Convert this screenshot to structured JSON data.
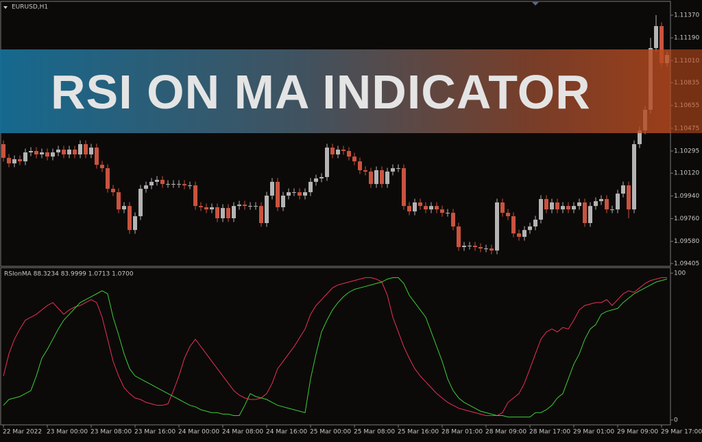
{
  "banner": {
    "title": "RSI ON MA INDICATOR"
  },
  "chart_data": [
    {
      "type": "candlestick",
      "title": "EURUSD,H1",
      "up_color": "#b4b4b4",
      "down_color": "#c9533f",
      "open": [
        1.10349,
        1.10241,
        1.10197,
        1.1023,
        1.10213,
        1.10284,
        1.10295,
        1.10268,
        1.10284,
        1.10251,
        1.10284,
        1.10306,
        1.10268,
        1.10306,
        1.10268,
        1.10349,
        1.10268,
        1.10322,
        1.10186,
        1.10159,
        1.09996,
        1.09969,
        1.09833,
        1.0986,
        1.0967,
        1.09779,
        1.09996,
        1.10023,
        1.10051,
        1.10067,
        1.10034,
        1.10034,
        1.10034,
        1.10034,
        1.10023,
        1.10023,
        1.0986,
        1.0985,
        1.09833,
        1.0985,
        1.09763,
        1.09844,
        1.09763,
        1.0986,
        1.09871,
        1.0986,
        1.0986,
        1.0986,
        1.09725,
        1.09942,
        1.10051,
        1.0985,
        1.09942,
        1.09969,
        1.09969,
        1.09942,
        1.09969,
        1.10051,
        1.10078,
        1.10089,
        1.10322,
        1.10268,
        1.10306,
        1.10295,
        1.10251,
        1.10213,
        1.10143,
        1.10132,
        1.10034,
        1.10143,
        1.10034,
        1.10132,
        1.10159,
        1.10159,
        1.0986,
        1.09817,
        1.09888,
        1.0986,
        1.09833,
        1.0986,
        1.09833,
        1.09806,
        1.09806,
        1.09698,
        1.09535,
        1.09546,
        1.09546,
        1.09535,
        1.09524,
        1.09524,
        1.09508,
        1.09888,
        1.09806,
        1.09779,
        1.09643,
        1.09616,
        1.0967,
        1.09698,
        1.09752,
        1.09915,
        1.09833,
        1.09888,
        1.09833,
        1.0986,
        1.09833,
        1.0986,
        1.09888,
        1.09725,
        1.0986,
        1.09898,
        1.09915,
        1.09833,
        1.09833,
        1.09958,
        1.10023,
        1.09833,
        1.10349,
        1.10458,
        1.10621,
        1.11109,
        1.11283,
        1.1099
      ],
      "high": [
        1.10379,
        1.10271,
        1.1026,
        1.1026,
        1.10314,
        1.10325,
        1.10325,
        1.10314,
        1.10314,
        1.10314,
        1.10336,
        1.10336,
        1.10336,
        1.10336,
        1.10379,
        1.10379,
        1.10352,
        1.10352,
        1.10216,
        1.10189,
        1.10026,
        1.09999,
        1.0989,
        1.0989,
        1.09809,
        1.10026,
        1.10053,
        1.10081,
        1.10097,
        1.10097,
        1.10064,
        1.10064,
        1.10064,
        1.10064,
        1.10053,
        1.10053,
        1.0989,
        1.0988,
        1.0988,
        1.0988,
        1.09874,
        1.09874,
        1.0989,
        1.09901,
        1.09901,
        1.0989,
        1.0989,
        1.0989,
        1.09972,
        1.10081,
        1.10081,
        1.09972,
        1.09999,
        1.09999,
        1.09999,
        1.09999,
        1.10081,
        1.10108,
        1.10119,
        1.10352,
        1.10352,
        1.10336,
        1.10336,
        1.10325,
        1.10281,
        1.10243,
        1.10173,
        1.10162,
        1.10173,
        1.10173,
        1.10162,
        1.10189,
        1.10189,
        1.10189,
        1.0989,
        1.09918,
        1.09918,
        1.0989,
        1.0989,
        1.0989,
        1.09863,
        1.09836,
        1.09836,
        1.09728,
        1.09576,
        1.09576,
        1.09576,
        1.09565,
        1.09554,
        1.09554,
        1.09918,
        1.09918,
        1.09836,
        1.09809,
        1.09673,
        1.097,
        1.09728,
        1.09782,
        1.09945,
        1.09945,
        1.09918,
        1.09918,
        1.0989,
        1.0989,
        1.0989,
        1.09918,
        1.09918,
        1.0989,
        1.09928,
        1.09945,
        1.09945,
        1.09863,
        1.09988,
        1.10053,
        1.10053,
        1.10379,
        1.10488,
        1.10651,
        1.1119,
        1.1137,
        1.11313,
        1.11085
      ],
      "low": [
        1.10211,
        1.10167,
        1.10167,
        1.10183,
        1.10183,
        1.10254,
        1.10238,
        1.10238,
        1.10221,
        1.10221,
        1.10254,
        1.10238,
        1.10238,
        1.10238,
        1.10238,
        1.10238,
        1.10238,
        1.10156,
        1.10129,
        1.09966,
        1.09939,
        1.09803,
        1.09803,
        1.0964,
        1.0964,
        1.09749,
        1.09966,
        1.09993,
        1.10021,
        1.10004,
        1.10004,
        1.10004,
        1.10004,
        1.09993,
        1.09993,
        1.0983,
        1.0982,
        1.09803,
        1.09803,
        1.09733,
        1.09733,
        1.09733,
        1.09733,
        1.0983,
        1.0983,
        1.0983,
        1.0983,
        1.09695,
        1.09695,
        1.09912,
        1.0982,
        1.0982,
        1.09912,
        1.09939,
        1.09912,
        1.09912,
        1.09939,
        1.10021,
        1.10048,
        1.10059,
        1.10238,
        1.10238,
        1.10265,
        1.10221,
        1.10183,
        1.10113,
        1.10102,
        1.10004,
        1.10004,
        1.10004,
        1.10004,
        1.10102,
        1.10129,
        1.0983,
        1.09787,
        1.09787,
        1.0983,
        1.09803,
        1.09803,
        1.09803,
        1.09776,
        1.09776,
        1.09668,
        1.09505,
        1.09505,
        1.09516,
        1.09505,
        1.09494,
        1.09494,
        1.09478,
        1.09478,
        1.09776,
        1.09749,
        1.09613,
        1.09586,
        1.09586,
        1.0964,
        1.09668,
        1.09722,
        1.09803,
        1.09803,
        1.09803,
        1.09803,
        1.09803,
        1.09803,
        1.0983,
        1.09695,
        1.09695,
        1.0983,
        1.09868,
        1.09803,
        1.09803,
        1.09803,
        1.09928,
        1.09763,
        1.09803,
        1.10319,
        1.10428,
        1.10591,
        1.11079,
        1.1096,
        1.1096
      ],
      "close": [
        1.10241,
        1.10197,
        1.1023,
        1.10213,
        1.10284,
        1.10295,
        1.10268,
        1.10284,
        1.10251,
        1.10284,
        1.10306,
        1.10268,
        1.10306,
        1.10268,
        1.10349,
        1.10268,
        1.10322,
        1.10186,
        1.10159,
        1.09996,
        1.09969,
        1.09833,
        1.0986,
        1.0967,
        1.09779,
        1.09996,
        1.10023,
        1.10051,
        1.10067,
        1.10034,
        1.10034,
        1.10034,
        1.10034,
        1.10023,
        1.10023,
        1.0986,
        1.0985,
        1.09833,
        1.0985,
        1.09763,
        1.09844,
        1.09763,
        1.0986,
        1.09871,
        1.0986,
        1.0986,
        1.0986,
        1.09725,
        1.09942,
        1.10051,
        1.0985,
        1.09942,
        1.09969,
        1.09969,
        1.09942,
        1.09969,
        1.10051,
        1.10078,
        1.10089,
        1.10322,
        1.10268,
        1.10306,
        1.10295,
        1.10251,
        1.10213,
        1.10143,
        1.10132,
        1.10034,
        1.10143,
        1.10034,
        1.10132,
        1.10159,
        1.10159,
        1.0986,
        1.09817,
        1.09888,
        1.0986,
        1.09833,
        1.0986,
        1.09833,
        1.09806,
        1.09806,
        1.09698,
        1.09535,
        1.09546,
        1.09546,
        1.09535,
        1.09524,
        1.09524,
        1.09508,
        1.09888,
        1.09806,
        1.09779,
        1.09643,
        1.09616,
        1.0967,
        1.09698,
        1.09752,
        1.09915,
        1.09833,
        1.09888,
        1.09833,
        1.0986,
        1.09833,
        1.0986,
        1.09888,
        1.09725,
        1.0986,
        1.09898,
        1.09915,
        1.09833,
        1.09833,
        1.09958,
        1.10023,
        1.09833,
        1.10349,
        1.10458,
        1.10621,
        1.11109,
        1.11283,
        1.1099,
        1.11055
      ],
      "ylim": [
        1.09383,
        1.11473
      ],
      "yticks": [
        {
          "value": 1.1137,
          "label": "1.11370"
        },
        {
          "value": 1.1119,
          "label": "1.11190"
        },
        {
          "value": 1.1101,
          "label": "1.11010"
        },
        {
          "value": 1.10835,
          "label": "1.10835"
        },
        {
          "value": 1.10655,
          "label": "1.10655"
        },
        {
          "value": 1.10475,
          "label": "1.10475"
        },
        {
          "value": 1.10295,
          "label": "1.10295"
        },
        {
          "value": 1.1012,
          "label": "1.10120"
        },
        {
          "value": 1.0994,
          "label": "1.09940"
        },
        {
          "value": 1.0976,
          "label": "1.09760"
        },
        {
          "value": 1.0958,
          "label": "1.09580"
        },
        {
          "value": 1.09405,
          "label": "1.09405"
        }
      ]
    },
    {
      "type": "line",
      "title": "RSIonMA 88.3234 83.9999 1.0713 1.0700",
      "categories": [
        "22 Mar 2022",
        null,
        null,
        null,
        null,
        null,
        null,
        null,
        "23 Mar 00:00",
        null,
        null,
        null,
        null,
        null,
        null,
        null,
        "23 Mar 08:00",
        null,
        null,
        null,
        null,
        null,
        null,
        null,
        "23 Mar 16:00",
        null,
        null,
        null,
        null,
        null,
        null,
        null,
        "24 Mar 00:00",
        null,
        null,
        null,
        null,
        null,
        null,
        null,
        "24 Mar 08:00",
        null,
        null,
        null,
        null,
        null,
        null,
        null,
        "24 Mar 16:00",
        null,
        null,
        null,
        null,
        null,
        null,
        null,
        "25 Mar 00:00",
        null,
        null,
        null,
        null,
        null,
        null,
        null,
        "25 Mar 08:00",
        null,
        null,
        null,
        null,
        null,
        null,
        null,
        "25 Mar 16:00",
        null,
        null,
        null,
        null,
        null,
        null,
        null,
        "28 Mar 01:00",
        null,
        null,
        null,
        null,
        null,
        null,
        null,
        "28 Mar 09:00",
        null,
        null,
        null,
        null,
        null,
        null,
        null,
        "28 Mar 17:00",
        null,
        null,
        null,
        null,
        null,
        null,
        null,
        "29 Mar 01:00",
        null,
        null,
        null,
        null,
        null,
        null,
        null,
        "29 Mar 09:00",
        null,
        null,
        null,
        null,
        null,
        null,
        null,
        "29 Mar 17:00",
        null
      ],
      "series": [
        {
          "color": "#e8325a",
          "values": [
            30,
            45,
            55,
            62,
            68,
            70,
            72,
            75,
            78,
            80,
            76,
            72,
            75,
            77,
            78,
            80,
            82,
            80,
            70,
            55,
            40,
            30,
            22,
            18,
            15,
            14,
            12,
            11,
            10,
            10,
            11,
            20,
            30,
            42,
            50,
            55,
            50,
            45,
            40,
            35,
            30,
            25,
            20,
            17,
            15,
            14,
            14,
            15,
            18,
            25,
            35,
            40,
            45,
            50,
            56,
            62,
            72,
            78,
            82,
            86,
            90,
            92,
            93,
            94,
            95,
            96,
            97,
            97,
            96,
            94,
            85,
            70,
            60,
            50,
            42,
            35,
            30,
            26,
            22,
            18,
            15,
            12,
            10,
            8,
            7,
            6,
            5,
            4,
            3,
            3,
            3,
            5,
            12,
            15,
            18,
            25,
            35,
            45,
            55,
            60,
            62,
            60,
            63,
            62,
            68,
            75,
            78,
            79,
            80,
            80,
            82,
            78,
            82,
            86,
            88,
            87,
            90,
            93,
            95,
            96,
            97,
            97
          ]
        },
        {
          "color": "#3ccf3c",
          "values": [
            10,
            14,
            15,
            16,
            18,
            20,
            30,
            42,
            48,
            55,
            62,
            68,
            72,
            76,
            80,
            82,
            84,
            86,
            88,
            86,
            70,
            58,
            45,
            35,
            30,
            28,
            26,
            24,
            22,
            20,
            18,
            16,
            14,
            12,
            10,
            9,
            7,
            6,
            5,
            5,
            4,
            4,
            3,
            3,
            10,
            18,
            16,
            15,
            14,
            12,
            10,
            9,
            8,
            7,
            6,
            5,
            28,
            45,
            60,
            68,
            75,
            80,
            84,
            87,
            89,
            90,
            91,
            92,
            93,
            94,
            96,
            97,
            97,
            93,
            85,
            80,
            75,
            70,
            60,
            50,
            40,
            28,
            20,
            15,
            12,
            10,
            8,
            6,
            5,
            4,
            3,
            3,
            2,
            2,
            2,
            2,
            2,
            5,
            5,
            7,
            10,
            15,
            18,
            28,
            38,
            45,
            55,
            62,
            65,
            72,
            74,
            75,
            76,
            80,
            83,
            86,
            88,
            90,
            92,
            94,
            95,
            96
          ]
        }
      ],
      "ylim": [
        -3.3,
        103.3
      ],
      "yticks": [
        100,
        0
      ]
    }
  ]
}
